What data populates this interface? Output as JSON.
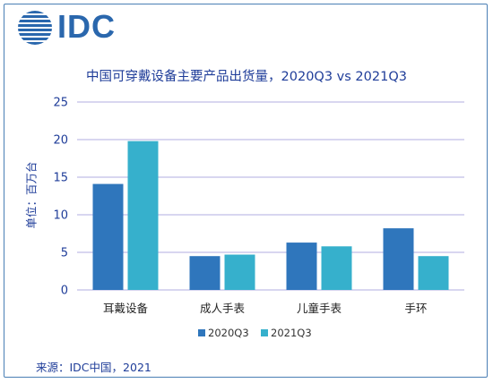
{
  "logo": {
    "text": "IDC"
  },
  "colors": {
    "series1": "#2f76bc",
    "series2": "#36b0cc",
    "grid": "#b0aee0",
    "text": "#1f3d99"
  },
  "chart_data": {
    "type": "bar",
    "title": "中国可穿戴设备主要产品出货量，2020Q3 vs 2021Q3",
    "ylabel": "单位：百万台",
    "xlabel": "",
    "categories": [
      "耳戴设备",
      "成人手表",
      "儿童手表",
      "手环"
    ],
    "series": [
      {
        "name": "2020Q3",
        "values": [
          14.1,
          4.5,
          6.3,
          8.2
        ]
      },
      {
        "name": "2021Q3",
        "values": [
          19.8,
          4.7,
          5.8,
          4.5
        ]
      }
    ],
    "ylim": [
      0,
      25
    ],
    "yticks": [
      0,
      5,
      10,
      15,
      20,
      25
    ],
    "grid": true,
    "legend": "bottom-center"
  },
  "source": "来源：IDC中国，2021"
}
